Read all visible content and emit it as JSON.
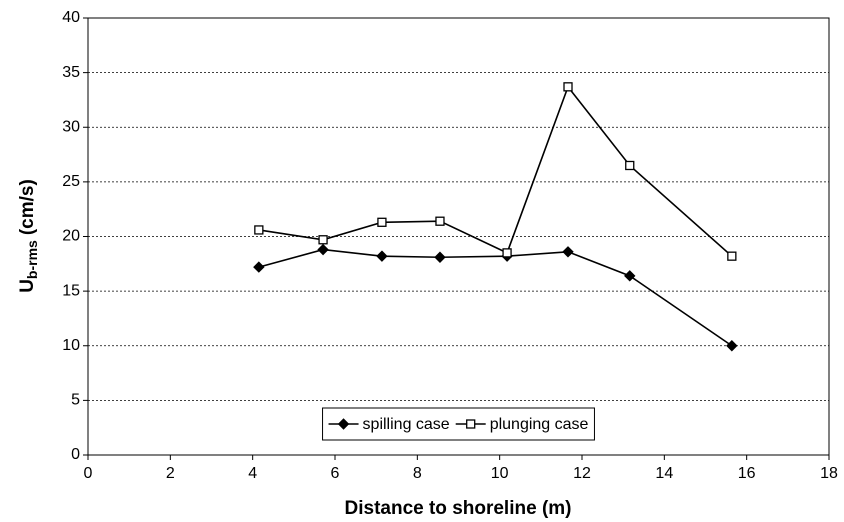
{
  "chart_data": {
    "type": "line",
    "x_label": "Distance to shoreline (m)",
    "y_label": {
      "main": "U",
      "subscript": "b-rms",
      "unit": "(cm/s)"
    },
    "x": [
      4.15,
      5.71,
      7.14,
      8.55,
      10.18,
      11.66,
      13.16,
      15.64
    ],
    "series": [
      {
        "name": "spilling case",
        "color": "#000000",
        "marker": "diamond",
        "values": [
          17.2,
          18.8,
          18.2,
          18.1,
          18.2,
          18.6,
          16.4,
          10.0
        ]
      },
      {
        "name": "plunging case",
        "color": "#000000",
        "marker": "square",
        "values": [
          20.6,
          19.7,
          21.3,
          21.4,
          18.5,
          33.7,
          26.5,
          18.2
        ]
      }
    ],
    "xlim": [
      0,
      18
    ],
    "xticks": [
      0,
      2,
      4,
      6,
      8,
      10,
      12,
      14,
      16,
      18
    ],
    "ylim": [
      0,
      40
    ],
    "yticks": [
      0,
      5,
      10,
      15,
      20,
      25,
      30,
      35,
      40
    ],
    "grid": true,
    "legend": "bottom"
  }
}
